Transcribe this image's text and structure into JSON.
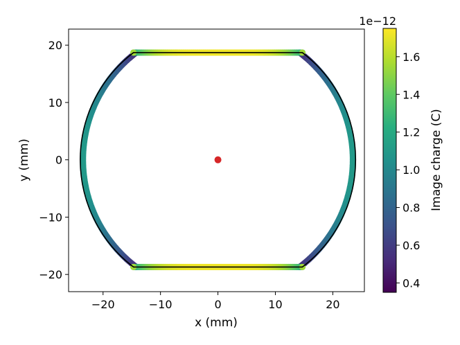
{
  "chart_data": {
    "type": "scatter",
    "xlabel": "x (mm)",
    "ylabel": "y (mm)",
    "xlim": [
      -26,
      25.5
    ],
    "ylim": [
      -23,
      22.8
    ],
    "xticks": [
      -20,
      -10,
      0,
      10,
      20
    ],
    "xtick_labels": [
      "−20",
      "−10",
      "0",
      "10",
      "20"
    ],
    "yticks": [
      -20,
      -10,
      0,
      10,
      20
    ],
    "ytick_labels": [
      "−20",
      "−10",
      "0",
      "10",
      "20"
    ],
    "colorbar": {
      "label": "Image charge (C)",
      "offset_text": "1e−12",
      "colormap": "viridis",
      "range": [
        0.35,
        1.75
      ],
      "ticks": [
        0.4,
        0.6,
        0.8,
        1.0,
        1.2,
        1.4,
        1.6
      ],
      "tick_labels": [
        "0.4",
        "0.6",
        "0.8",
        "1.0",
        "1.2",
        "1.4",
        "1.6"
      ]
    },
    "boundary": {
      "description": "circle radius 23.5 mm clipped by flat plates at y = ±18.7 mm",
      "radius": 23.5,
      "flat_y": 18.7,
      "corner_x": 14.7,
      "line_color": "#000000"
    },
    "point_charge": {
      "x": 0,
      "y": 0,
      "color": "#d62728"
    },
    "charge_profile": [
      {
        "segment": "top/bottom flats",
        "charge_center": 1.7,
        "charge_ends": 1.2
      },
      {
        "segment": "arcs near corners",
        "charge_corner": 0.5
      },
      {
        "segment": "arcs at y = 0",
        "charge": 1.1
      }
    ]
  }
}
